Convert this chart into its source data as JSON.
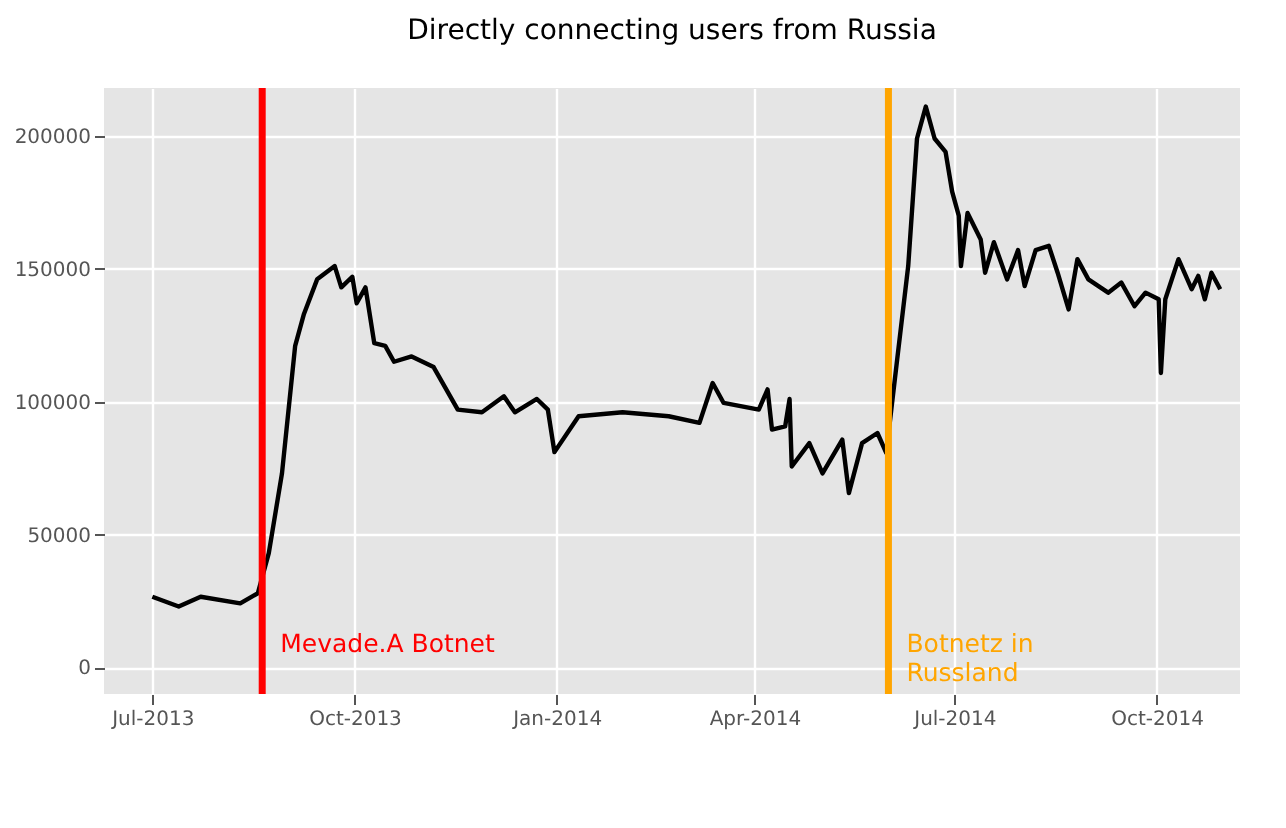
{
  "chart_data": {
    "type": "line",
    "title": "Directly connecting users from Russia",
    "x": [
      "2013-07-01",
      "2013-07-13",
      "2013-07-23",
      "2013-08-10",
      "2013-08-18",
      "2013-08-23",
      "2013-08-29",
      "2013-09-04",
      "2013-09-08",
      "2013-09-14",
      "2013-09-22",
      "2013-09-25",
      "2013-09-30",
      "2013-10-02",
      "2013-10-06",
      "2013-10-10",
      "2013-10-15",
      "2013-10-19",
      "2013-10-27",
      "2013-11-06",
      "2013-11-17",
      "2013-11-28",
      "2013-12-08",
      "2013-12-13",
      "2013-12-23",
      "2013-12-28",
      "2013-12-31",
      "2014-01-11",
      "2014-01-31",
      "2014-02-21",
      "2014-03-07",
      "2014-03-13",
      "2014-03-18",
      "2014-04-03",
      "2014-04-07",
      "2014-04-09",
      "2014-04-15",
      "2014-04-17",
      "2014-04-18",
      "2014-04-26",
      "2014-05-02",
      "2014-05-11",
      "2014-05-14",
      "2014-05-20",
      "2014-05-27",
      "2014-05-31",
      "2014-06-05",
      "2014-06-10",
      "2014-06-14",
      "2014-06-18",
      "2014-06-22",
      "2014-06-27",
      "2014-06-30",
      "2014-07-03",
      "2014-07-04",
      "2014-07-07",
      "2014-07-13",
      "2014-07-15",
      "2014-07-19",
      "2014-07-25",
      "2014-07-30",
      "2014-08-02",
      "2014-08-07",
      "2014-08-13",
      "2014-08-17",
      "2014-08-22",
      "2014-08-26",
      "2014-08-31",
      "2014-09-09",
      "2014-09-15",
      "2014-09-21",
      "2014-09-26",
      "2014-10-02",
      "2014-10-03",
      "2014-10-05",
      "2014-10-11",
      "2014-10-17",
      "2014-10-20",
      "2014-10-23",
      "2014-10-26",
      "2014-10-30"
    ],
    "series": [
      {
        "color": "#000000",
        "values": [
          26600,
          22900,
          26600,
          24100,
          27900,
          43000,
          73000,
          121000,
          133000,
          146000,
          151000,
          143000,
          147000,
          137000,
          143000,
          122000,
          121000,
          115000,
          117000,
          113000,
          97000,
          96000,
          102000,
          96000,
          101000,
          97000,
          81000,
          94500,
          96000,
          94500,
          92000,
          107000,
          99500,
          97000,
          104600,
          89500,
          90700,
          101000,
          75600,
          84400,
          73000,
          85700,
          65600,
          84400,
          88200,
          80700,
          116000,
          151000,
          199000,
          211000,
          199000,
          194000,
          179000,
          170000,
          151000,
          171000,
          161000,
          148500,
          160000,
          146000,
          157000,
          143500,
          157000,
          158600,
          148500,
          134700,
          153600,
          146000,
          141000,
          144800,
          135900,
          141000,
          138500,
          110800,
          138500,
          153600,
          142300,
          147300,
          138500,
          148500,
          142300
        ]
      }
    ],
    "xlim": [
      "2013-06-09",
      "2014-11-08"
    ],
    "xticks": [
      {
        "value": "2013-07-01",
        "label": "Jul-2013"
      },
      {
        "value": "2013-10-01",
        "label": "Oct-2013"
      },
      {
        "value": "2014-01-01",
        "label": "Jan-2014"
      },
      {
        "value": "2014-04-01",
        "label": "Apr-2014"
      },
      {
        "value": "2014-07-01",
        "label": "Jul-2014"
      },
      {
        "value": "2014-10-01",
        "label": "Oct-2014"
      }
    ],
    "ylim": [
      -10000,
      218000
    ],
    "yticks": [
      0,
      50000,
      100000,
      150000,
      200000
    ],
    "grid": true,
    "ref_lines": [
      {
        "axis": "x",
        "value": "2013-08-20",
        "label": "Mevade.A Botnet",
        "color": "#ff0000"
      },
      {
        "axis": "x",
        "value": "2014-06-01",
        "label": "Botnetz in\nRussland",
        "color": "#ffa500"
      }
    ]
  }
}
